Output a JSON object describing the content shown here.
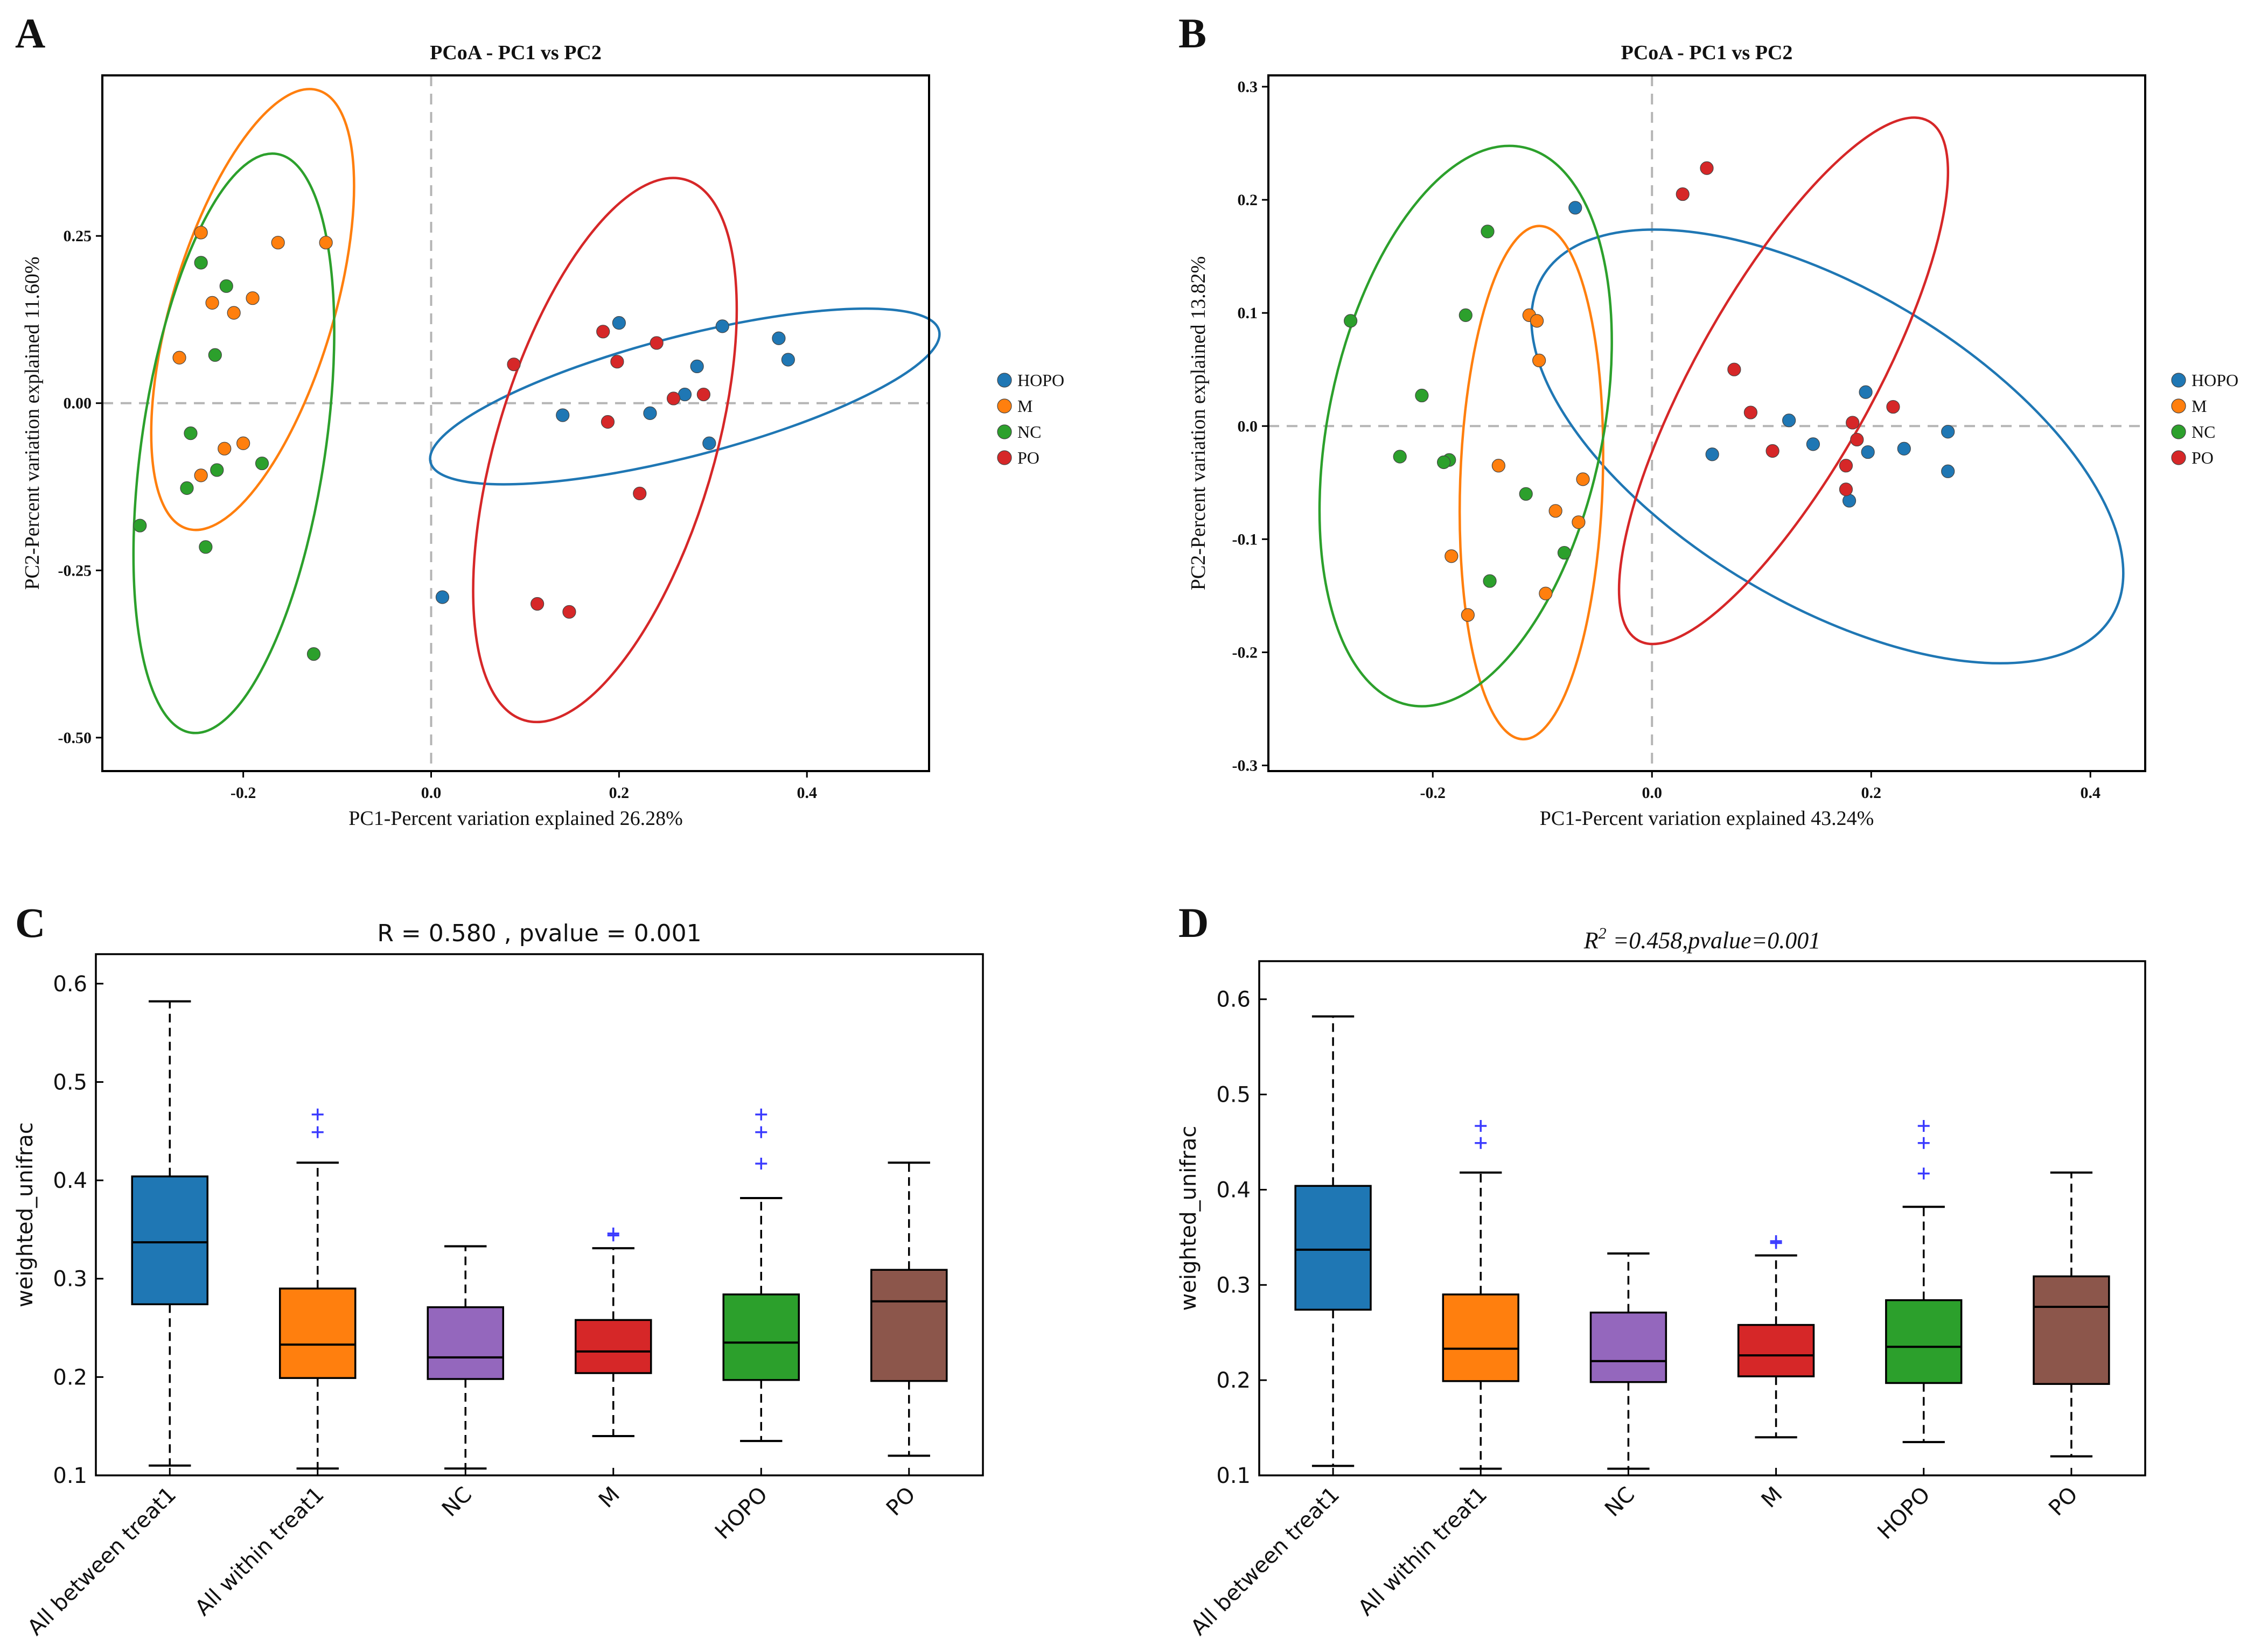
{
  "palette": {
    "HOPO": "#1f77b4",
    "M": "#ff7f0e",
    "NC": "#2ca02c",
    "PO": "#d62728",
    "purple": "#9467bd",
    "brown": "#8c564b",
    "outlier": "#3b3bff"
  },
  "panels": {
    "A": {
      "letter": "A"
    },
    "B": {
      "letter": "B"
    },
    "C": {
      "letter": "C"
    },
    "D": {
      "letter": "D"
    }
  },
  "chart_data": [
    {
      "id": "A",
      "type": "scatter",
      "title": "PCoA - PC1 vs PC2",
      "xlabel": "PC1-Percent variation explained 26.28%",
      "ylabel": "PC2-Percent variation explained 11.60%",
      "xlim": [
        -0.35,
        0.53
      ],
      "ylim": [
        -0.55,
        0.49
      ],
      "xticks": [
        -0.2,
        0.0,
        0.2,
        0.4
      ],
      "xtick_labels": [
        "-0.2",
        "0.0",
        "0.2",
        "0.4"
      ],
      "yticks": [
        -0.5,
        -0.25,
        0.0,
        0.25
      ],
      "ytick_labels": [
        "-0.50",
        "-0.25",
        "0.00",
        "0.25"
      ],
      "legend": [
        "HOPO",
        "M",
        "NC",
        "PO"
      ],
      "series": [
        {
          "name": "HOPO",
          "points": [
            [
              0.38,
              0.065
            ],
            [
              0.37,
              0.097
            ],
            [
              0.31,
              0.115
            ],
            [
              0.2,
              0.12
            ],
            [
              0.283,
              0.055
            ],
            [
              0.27,
              0.013
            ],
            [
              0.233,
              -0.015
            ],
            [
              0.296,
              -0.06
            ],
            [
              0.14,
              -0.018
            ],
            [
              0.012,
              -0.29
            ]
          ]
        },
        {
          "name": "M",
          "points": [
            [
              -0.245,
              0.255
            ],
            [
              -0.163,
              0.24
            ],
            [
              -0.112,
              0.24
            ],
            [
              -0.19,
              0.157
            ],
            [
              -0.233,
              0.15
            ],
            [
              -0.21,
              0.135
            ],
            [
              -0.268,
              0.068
            ],
            [
              -0.2,
              -0.06
            ],
            [
              -0.22,
              -0.068
            ],
            [
              -0.245,
              -0.108
            ]
          ]
        },
        {
          "name": "NC",
          "points": [
            [
              -0.245,
              0.21
            ],
            [
              -0.218,
              0.175
            ],
            [
              -0.23,
              0.072
            ],
            [
              -0.256,
              -0.045
            ],
            [
              -0.18,
              -0.09
            ],
            [
              -0.228,
              -0.1
            ],
            [
              -0.26,
              -0.127
            ],
            [
              -0.31,
              -0.183
            ],
            [
              -0.24,
              -0.215
            ],
            [
              -0.125,
              -0.375
            ]
          ]
        },
        {
          "name": "PO",
          "points": [
            [
              0.088,
              0.058
            ],
            [
              0.183,
              0.107
            ],
            [
              0.24,
              0.09
            ],
            [
              0.198,
              0.062
            ],
            [
              0.258,
              0.007
            ],
            [
              0.29,
              0.013
            ],
            [
              0.188,
              -0.028
            ],
            [
              0.222,
              -0.135
            ],
            [
              0.113,
              -0.3
            ],
            [
              0.147,
              -0.312
            ]
          ]
        }
      ],
      "ellipses": [
        {
          "name": "HOPO",
          "center": [
            0.27,
            0.01
          ],
          "semi_axes": [
            0.288,
            0.085
          ],
          "angle_deg": 20
        },
        {
          "name": "M",
          "center": [
            -0.19,
            0.14
          ],
          "semi_axes": [
            0.335,
            0.087
          ],
          "angle_deg": 78
        },
        {
          "name": "NC",
          "center": [
            -0.21,
            -0.06
          ],
          "semi_axes": [
            0.435,
            0.098
          ],
          "angle_deg": 84
        },
        {
          "name": "PO",
          "center": [
            0.185,
            -0.07
          ],
          "semi_axes": [
            0.413,
            0.117
          ],
          "angle_deg": 78
        }
      ]
    },
    {
      "id": "B",
      "type": "scatter",
      "title": "PCoA - PC1 vs PC2",
      "xlabel": "PC1-Percent variation explained 43.24%",
      "ylabel": "PC2-Percent variation explained 13.82%",
      "xlim": [
        -0.35,
        0.45
      ],
      "ylim": [
        -0.305,
        0.31
      ],
      "xticks": [
        -0.2,
        0.0,
        0.2,
        0.4
      ],
      "xtick_labels": [
        "-0.2",
        "0.0",
        "0.2",
        "0.4"
      ],
      "yticks": [
        -0.3,
        -0.2,
        -0.1,
        0.0,
        0.1,
        0.2,
        0.3
      ],
      "ytick_labels": [
        "-0.3",
        "-0.2",
        "-0.1",
        "0.0",
        "0.1",
        "0.2",
        "0.3"
      ],
      "legend": [
        "HOPO",
        "M",
        "NC",
        "PO"
      ],
      "series": [
        {
          "name": "HOPO",
          "points": [
            [
              -0.07,
              0.193
            ],
            [
              0.195,
              0.03
            ],
            [
              0.125,
              0.005
            ],
            [
              0.147,
              -0.016
            ],
            [
              0.27,
              -0.005
            ],
            [
              0.23,
              -0.02
            ],
            [
              0.197,
              -0.023
            ],
            [
              0.055,
              -0.025
            ],
            [
              0.27,
              -0.04
            ],
            [
              0.18,
              -0.066
            ]
          ]
        },
        {
          "name": "M",
          "points": [
            [
              -0.112,
              0.098
            ],
            [
              -0.105,
              0.093
            ],
            [
              -0.103,
              0.058
            ],
            [
              -0.14,
              -0.035
            ],
            [
              -0.063,
              -0.047
            ],
            [
              -0.088,
              -0.075
            ],
            [
              -0.067,
              -0.085
            ],
            [
              -0.183,
              -0.115
            ],
            [
              -0.097,
              -0.148
            ],
            [
              -0.168,
              -0.167
            ]
          ]
        },
        {
          "name": "NC",
          "points": [
            [
              -0.15,
              0.172
            ],
            [
              -0.275,
              0.093
            ],
            [
              -0.17,
              0.098
            ],
            [
              -0.21,
              0.027
            ],
            [
              -0.23,
              -0.027
            ],
            [
              -0.185,
              -0.03
            ],
            [
              -0.19,
              -0.032
            ],
            [
              -0.115,
              -0.06
            ],
            [
              -0.08,
              -0.112
            ],
            [
              -0.148,
              -0.137
            ]
          ]
        },
        {
          "name": "PO",
          "points": [
            [
              0.05,
              0.228
            ],
            [
              0.028,
              0.205
            ],
            [
              0.075,
              0.05
            ],
            [
              0.09,
              0.012
            ],
            [
              0.22,
              0.017
            ],
            [
              0.183,
              0.003
            ],
            [
              0.187,
              -0.012
            ],
            [
              0.11,
              -0.022
            ],
            [
              0.177,
              -0.035
            ],
            [
              0.177,
              -0.056
            ]
          ]
        }
      ],
      "ellipses": [
        {
          "name": "HOPO",
          "center": [
            0.16,
            -0.018
          ],
          "semi_axes": [
            0.3,
            0.14
          ],
          "angle_deg": -30
        },
        {
          "name": "M",
          "center": [
            -0.11,
            -0.05
          ],
          "semi_axes": [
            0.227,
            0.065
          ],
          "angle_deg": 88
        },
        {
          "name": "NC",
          "center": [
            -0.17,
            0.0
          ],
          "semi_axes": [
            0.252,
            0.125
          ],
          "angle_deg": 78
        },
        {
          "name": "PO",
          "center": [
            0.12,
            0.04
          ],
          "semi_axes": [
            0.265,
            0.08
          ],
          "angle_deg": 60
        }
      ]
    },
    {
      "id": "C",
      "type": "box",
      "title": "R = 0.580 , pvalue = 0.001",
      "xlabel": "",
      "ylabel": "weighted_unifrac",
      "ylim": [
        0.1,
        0.63
      ],
      "yticks": [
        0.1,
        0.2,
        0.3,
        0.4,
        0.5,
        0.6
      ],
      "ytick_labels": [
        "0.1",
        "0.2",
        "0.3",
        "0.4",
        "0.5",
        "0.6"
      ],
      "categories": [
        "All between treat1",
        "All within treat1",
        "NC",
        "M",
        "HOPO",
        "PO"
      ],
      "box_colors": [
        "#1f77b4",
        "#ff7f0e",
        "#9467bd",
        "#d62728",
        "#2ca02c",
        "#8c564b"
      ],
      "boxes": [
        {
          "whisker_low": 0.11,
          "q1": 0.274,
          "median": 0.337,
          "q3": 0.404,
          "whisker_high": 0.582,
          "outliers": []
        },
        {
          "whisker_low": 0.107,
          "q1": 0.199,
          "median": 0.233,
          "q3": 0.29,
          "whisker_high": 0.418,
          "outliers": [
            0.449,
            0.467
          ]
        },
        {
          "whisker_low": 0.107,
          "q1": 0.198,
          "median": 0.22,
          "q3": 0.271,
          "whisker_high": 0.333,
          "outliers": []
        },
        {
          "whisker_low": 0.14,
          "q1": 0.204,
          "median": 0.226,
          "q3": 0.258,
          "whisker_high": 0.331,
          "outliers": [
            0.344,
            0.346
          ]
        },
        {
          "whisker_low": 0.135,
          "q1": 0.197,
          "median": 0.235,
          "q3": 0.284,
          "whisker_high": 0.382,
          "outliers": [
            0.417,
            0.449,
            0.467
          ]
        },
        {
          "whisker_low": 0.12,
          "q1": 0.196,
          "median": 0.277,
          "q3": 0.309,
          "whisker_high": 0.418,
          "outliers": []
        }
      ]
    },
    {
      "id": "D",
      "type": "box",
      "title": "=0.458,pvalue=0.001",
      "title_prefix_symbol": "R",
      "title_prefix_exponent": "2",
      "xlabel": "",
      "ylabel": "weighted_unifrac",
      "ylim": [
        0.1,
        0.64
      ],
      "yticks": [
        0.1,
        0.2,
        0.3,
        0.4,
        0.5,
        0.6
      ],
      "ytick_labels": [
        "0.1",
        "0.2",
        "0.3",
        "0.4",
        "0.5",
        "0.6"
      ],
      "categories": [
        "All between treat1",
        "All within treat1",
        "NC",
        "M",
        "HOPO",
        "PO"
      ],
      "box_colors": [
        "#1f77b4",
        "#ff7f0e",
        "#9467bd",
        "#d62728",
        "#2ca02c",
        "#8c564b"
      ],
      "boxes": [
        {
          "whisker_low": 0.11,
          "q1": 0.274,
          "median": 0.337,
          "q3": 0.404,
          "whisker_high": 0.582,
          "outliers": []
        },
        {
          "whisker_low": 0.107,
          "q1": 0.199,
          "median": 0.233,
          "q3": 0.29,
          "whisker_high": 0.418,
          "outliers": [
            0.449,
            0.467
          ]
        },
        {
          "whisker_low": 0.107,
          "q1": 0.198,
          "median": 0.22,
          "q3": 0.271,
          "whisker_high": 0.333,
          "outliers": []
        },
        {
          "whisker_low": 0.14,
          "q1": 0.204,
          "median": 0.226,
          "q3": 0.258,
          "whisker_high": 0.331,
          "outliers": [
            0.344,
            0.346
          ]
        },
        {
          "whisker_low": 0.135,
          "q1": 0.197,
          "median": 0.235,
          "q3": 0.284,
          "whisker_high": 0.382,
          "outliers": [
            0.417,
            0.449,
            0.467
          ]
        },
        {
          "whisker_low": 0.12,
          "q1": 0.196,
          "median": 0.277,
          "q3": 0.309,
          "whisker_high": 0.418,
          "outliers": []
        }
      ]
    }
  ]
}
